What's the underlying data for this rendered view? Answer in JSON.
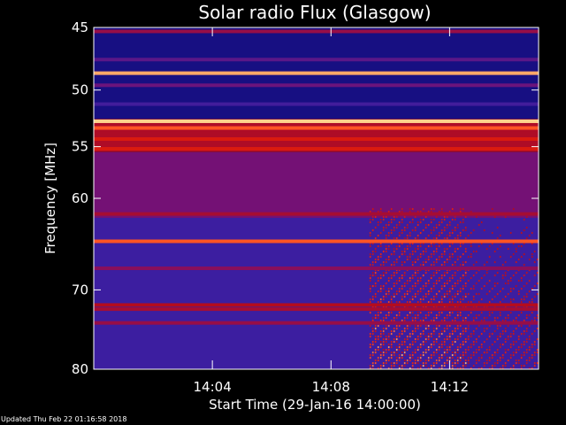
{
  "chart_data": {
    "type": "heatmap",
    "title": "Solar radio Flux (Glasgow)",
    "xlabel": "Start Time (29-Jan-16 14:00:00)",
    "ylabel": "Frequency [MHz]",
    "x_range_minutes": [
      0,
      15
    ],
    "x_ticks": [
      {
        "value": 4,
        "label": "14:04"
      },
      {
        "value": 8,
        "label": "14:08"
      },
      {
        "value": 12,
        "label": "14:12"
      }
    ],
    "y_scale": "log",
    "ylim": [
      45,
      80
    ],
    "y_ticks": [
      {
        "value": 45,
        "label": "45"
      },
      {
        "value": 50,
        "label": "50"
      },
      {
        "value": 55,
        "label": "55"
      },
      {
        "value": 60,
        "label": "60"
      },
      {
        "value": 70,
        "label": "70"
      },
      {
        "value": 80,
        "label": "80"
      }
    ],
    "colormap": [
      "#0a0a78",
      "#3c1ea0",
      "#7a1070",
      "#b40c1e",
      "#ff2a00",
      "#ffd28a"
    ],
    "background_levels": [
      {
        "freq_from": 45,
        "freq_to": 52.5,
        "level": 0.05
      },
      {
        "freq_from": 52.5,
        "freq_to": 55.5,
        "level": 0.58
      },
      {
        "freq_from": 55.5,
        "freq_to": 62,
        "level": 0.38
      },
      {
        "freq_from": 62,
        "freq_to": 80,
        "level": 0.2
      }
    ],
    "emission_lines": [
      {
        "freq": 45.3,
        "level": 0.5
      },
      {
        "freq": 47.5,
        "level": 0.3
      },
      {
        "freq": 48.6,
        "level": 0.95
      },
      {
        "freq": 49.6,
        "level": 0.35
      },
      {
        "freq": 51.2,
        "level": 0.22
      },
      {
        "freq": 52.7,
        "level": 1.0
      },
      {
        "freq": 53.3,
        "level": 0.85
      },
      {
        "freq": 54.3,
        "level": 0.7
      },
      {
        "freq": 55.2,
        "level": 0.7
      },
      {
        "freq": 61.6,
        "level": 0.55
      },
      {
        "freq": 64.5,
        "level": 0.85
      },
      {
        "freq": 67.5,
        "level": 0.45
      },
      {
        "freq": 71.8,
        "level": 0.6
      },
      {
        "freq": 72.3,
        "level": 0.55
      },
      {
        "freq": 74.0,
        "level": 0.5
      }
    ],
    "burst": {
      "start_minute": 9.3,
      "end_minute": 15,
      "freq_from": 61,
      "freq_to": 80,
      "peak_minutes": [
        9.3,
        11.0
      ],
      "level": 0.9
    }
  },
  "footer_text": "Updated Thu Feb 22 01:16:58 2018"
}
